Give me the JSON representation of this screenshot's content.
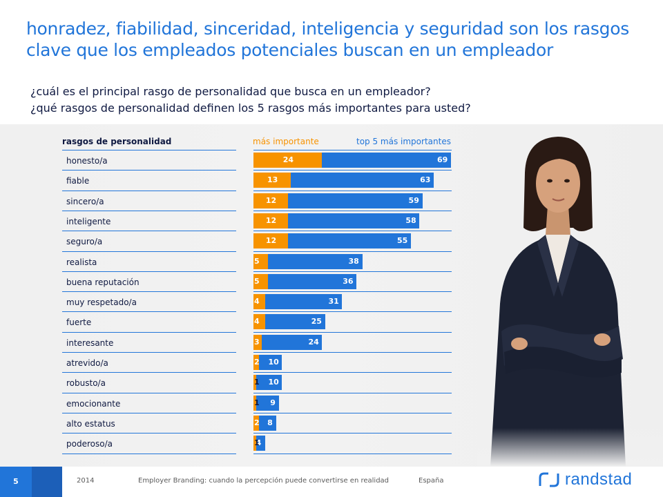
{
  "title": "honradez, fiabilidad, sinceridad, inteligencia y seguridad son los rasgos clave que los empleados potenciales buscan en un empleador",
  "subtitle_lines": [
    "¿cuál es el principal rasgo de personalidad que busca en un empleador?",
    "¿qué rasgos de personalidad definen los 5 rasgos más importantes para usted?"
  ],
  "column_header": "rasgos de personalidad",
  "colors": {
    "orange": "#F79300",
    "blue": "#2175D9",
    "navy": "#0F1941"
  },
  "chart_data": {
    "type": "bar",
    "orientation": "horizontal",
    "categories": [
      "honesto/a",
      "fiable",
      "sincero/a",
      "inteligente",
      "seguro/a",
      "realista",
      "buena reputación",
      "muy respetado/a",
      "fuerte",
      "interesante",
      "atrevido/a",
      "robusto/a",
      "emocionante",
      "alto estatus",
      "poderoso/a"
    ],
    "series": [
      {
        "name": "más importante",
        "color": "#F79300",
        "values": [
          24,
          13,
          12,
          12,
          12,
          5,
          5,
          4,
          4,
          3,
          2,
          1,
          1,
          2,
          1
        ]
      },
      {
        "name": "top 5 más importantes",
        "color": "#2175D9",
        "values": [
          69,
          63,
          59,
          58,
          55,
          38,
          36,
          31,
          25,
          24,
          10,
          10,
          9,
          8,
          4
        ]
      }
    ],
    "xlim": [
      0,
      69
    ]
  },
  "footer": {
    "page_number": "5",
    "year": "2014",
    "report": "Employer Branding: cuando la percepción puede convertirse en realidad",
    "country": "España",
    "brand": "randstad"
  }
}
